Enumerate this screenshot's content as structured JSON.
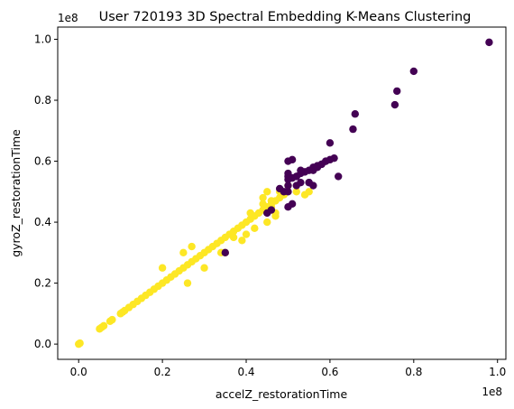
{
  "chart_data": {
    "type": "scatter",
    "title": "User 720193 3D Spectral Embedding K-Means Clustering",
    "xlabel": "accelZ_restorationTime",
    "ylabel": "gyroZ_restorationTime",
    "x_offset_label": "1e8",
    "y_offset_label": "1e8",
    "xlim": [
      -0.05,
      1.02
    ],
    "ylim": [
      -0.05,
      1.04
    ],
    "xticks": [
      0.0,
      0.2,
      0.4,
      0.6,
      0.8,
      1.0
    ],
    "yticks": [
      0.0,
      0.2,
      0.4,
      0.6,
      0.8,
      1.0
    ],
    "xtick_labels": [
      "0.0",
      "0.2",
      "0.4",
      "0.6",
      "0.8",
      "1.0"
    ],
    "ytick_labels": [
      "0.0",
      "0.2",
      "0.4",
      "0.6",
      "0.8",
      "1.0"
    ],
    "grid": false,
    "series": [
      {
        "color": "#fde725",
        "x": [
          0.0,
          0.003,
          0.05,
          0.055,
          0.06,
          0.075,
          0.08,
          0.1,
          0.105,
          0.11,
          0.12,
          0.13,
          0.14,
          0.15,
          0.16,
          0.17,
          0.18,
          0.19,
          0.2,
          0.21,
          0.22,
          0.23,
          0.24,
          0.25,
          0.26,
          0.27,
          0.28,
          0.29,
          0.3,
          0.31,
          0.32,
          0.33,
          0.34,
          0.35,
          0.36,
          0.37,
          0.38,
          0.39,
          0.4,
          0.41,
          0.42,
          0.43,
          0.44,
          0.45,
          0.46,
          0.47,
          0.48,
          0.49,
          0.2,
          0.25,
          0.26,
          0.27,
          0.3,
          0.34,
          0.35,
          0.37,
          0.39,
          0.4,
          0.42,
          0.45,
          0.47,
          0.41,
          0.44,
          0.45,
          0.46,
          0.48,
          0.5,
          0.52,
          0.54,
          0.55,
          0.44,
          0.46,
          0.47
        ],
        "y": [
          0.0,
          0.003,
          0.05,
          0.055,
          0.06,
          0.075,
          0.08,
          0.1,
          0.105,
          0.11,
          0.12,
          0.13,
          0.14,
          0.15,
          0.16,
          0.17,
          0.18,
          0.19,
          0.2,
          0.21,
          0.22,
          0.23,
          0.24,
          0.25,
          0.26,
          0.27,
          0.28,
          0.29,
          0.3,
          0.31,
          0.32,
          0.33,
          0.34,
          0.35,
          0.36,
          0.37,
          0.38,
          0.39,
          0.4,
          0.41,
          0.42,
          0.43,
          0.44,
          0.45,
          0.46,
          0.47,
          0.48,
          0.49,
          0.25,
          0.3,
          0.2,
          0.32,
          0.25,
          0.3,
          0.3,
          0.35,
          0.34,
          0.36,
          0.38,
          0.4,
          0.42,
          0.43,
          0.48,
          0.5,
          0.47,
          0.5,
          0.52,
          0.5,
          0.49,
          0.5,
          0.46,
          0.45,
          0.43
        ]
      },
      {
        "color": "#440154",
        "x": [
          0.98,
          0.8,
          0.76,
          0.755,
          0.66,
          0.655,
          0.61,
          0.6,
          0.59,
          0.58,
          0.57,
          0.56,
          0.55,
          0.54,
          0.53,
          0.52,
          0.51,
          0.5,
          0.49,
          0.5,
          0.51,
          0.6,
          0.5,
          0.52,
          0.53,
          0.55,
          0.56,
          0.57,
          0.58,
          0.59,
          0.5,
          0.5,
          0.51,
          0.52,
          0.35,
          0.45,
          0.46,
          0.48,
          0.5,
          0.55,
          0.56,
          0.62,
          0.5,
          0.53
        ],
        "y": [
          0.99,
          0.895,
          0.83,
          0.785,
          0.755,
          0.705,
          0.61,
          0.605,
          0.6,
          0.59,
          0.585,
          0.58,
          0.57,
          0.565,
          0.56,
          0.55,
          0.545,
          0.54,
          0.5,
          0.6,
          0.605,
          0.66,
          0.55,
          0.52,
          0.53,
          0.53,
          0.57,
          0.58,
          0.59,
          0.6,
          0.5,
          0.45,
          0.46,
          0.55,
          0.3,
          0.43,
          0.44,
          0.51,
          0.52,
          0.53,
          0.52,
          0.55,
          0.56,
          0.57
        ]
      }
    ]
  }
}
